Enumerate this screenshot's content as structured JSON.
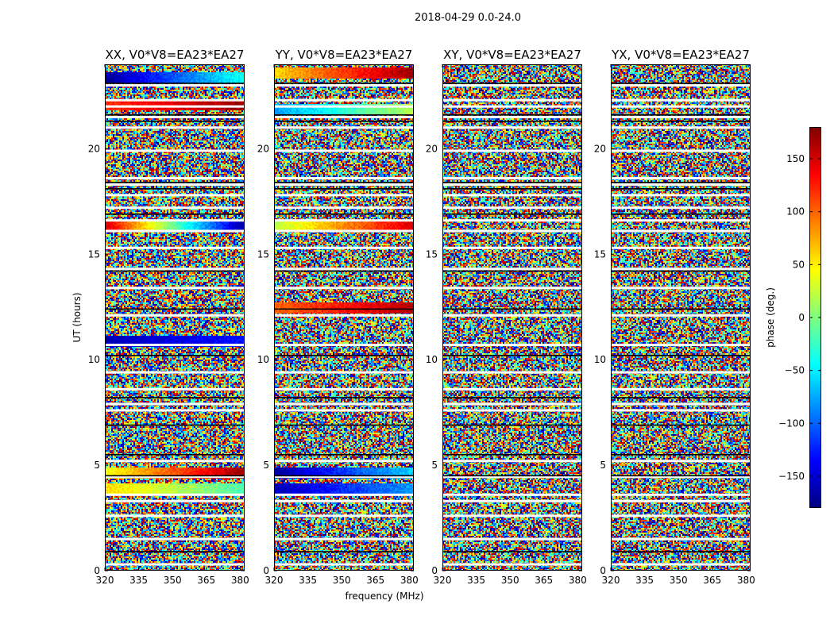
{
  "chart_data": {
    "type": "heatmap",
    "title": "2018-04-29 0.0-24.0",
    "xlabel": "frequency (MHz)",
    "ylabel": "UT (hours)",
    "xlim": [
      320,
      382
    ],
    "ylim": [
      0,
      24
    ],
    "xticks": [
      "320",
      "335",
      "350",
      "365",
      "380"
    ],
    "yticks": [
      "0",
      "5",
      "10",
      "15",
      "20"
    ],
    "panels": [
      {
        "title": "XX, V0*V8=EA23*EA27",
        "coherent_bands": [
          {
            "t": 4.7,
            "phase_start": 40,
            "phase_end": 170
          },
          {
            "t": 3.9,
            "phase_start": 60,
            "phase_end": -20
          },
          {
            "t": 10.9,
            "phase_start": -160,
            "phase_end": -130
          },
          {
            "t": 16.4,
            "phase_start": 150,
            "phase_end": -170
          },
          {
            "t": 22.1,
            "phase_start": 120,
            "phase_end": 170
          },
          {
            "t": 23.4,
            "phase_start": -170,
            "phase_end": -40
          }
        ]
      },
      {
        "title": "YY, V0*V8=EA23*EA27",
        "coherent_bands": [
          {
            "t": 4.7,
            "phase_start": -170,
            "phase_end": -60
          },
          {
            "t": 3.9,
            "phase_start": -160,
            "phase_end": -80
          },
          {
            "t": 12.5,
            "phase_start": 100,
            "phase_end": 160
          },
          {
            "t": 16.4,
            "phase_start": 20,
            "phase_end": 150
          },
          {
            "t": 21.9,
            "phase_start": -80,
            "phase_end": 20
          },
          {
            "t": 23.6,
            "phase_start": 60,
            "phase_end": 170
          }
        ]
      },
      {
        "title": "XY, V0*V8=EA23*EA27",
        "coherent_bands": []
      },
      {
        "title": "YX, V0*V8=EA23*EA27",
        "coherent_bands": []
      }
    ],
    "flagged_rows_hours": [
      0.3,
      1.5,
      2.6,
      3.3,
      3.6,
      4.45,
      5.2,
      7.6,
      7.9,
      8.6,
      9.4,
      10.7,
      12.1,
      13.4,
      14.3,
      15.3,
      16.1,
      16.6,
      17.2,
      17.8,
      18.3,
      18.6,
      19.9,
      21.0,
      21.5,
      22.0,
      22.3,
      23.0
    ],
    "dark_rows_hours": [
      0.9,
      4.5,
      5.5,
      6.9,
      8.2,
      10.2,
      12.4,
      14.2,
      16.9,
      18.1,
      18.4,
      21.3,
      21.6,
      23.1
    ],
    "colorbar": {
      "label": "phase (deg.)",
      "range": [
        -180,
        180
      ],
      "ticks": [
        "150",
        "100",
        "50",
        "0",
        "−50",
        "−100",
        "−150"
      ],
      "tick_values": [
        150,
        100,
        50,
        0,
        -50,
        -100,
        -150
      ],
      "colormap": "jet",
      "colors": [
        "#00007f",
        "#0000ff",
        "#007fff",
        "#00ffff",
        "#7fff7f",
        "#ffff00",
        "#ff7f00",
        "#ff0000",
        "#7f0000"
      ]
    }
  }
}
